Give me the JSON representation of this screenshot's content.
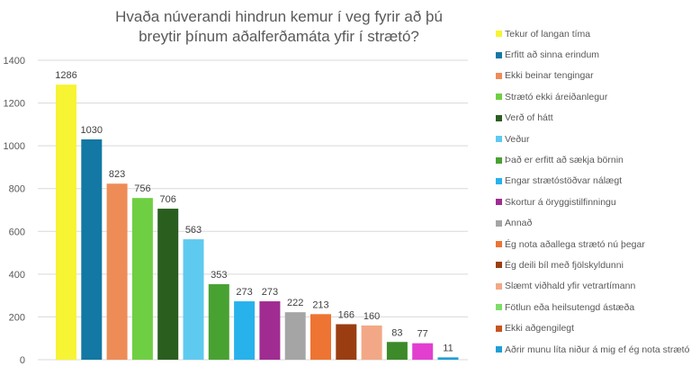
{
  "chart_data": {
    "type": "bar",
    "title": "Hvaða núverandi hindrun kemur í veg fyrir að þú breytir þínum aðalferðamáta yfir í strætó?",
    "title_lines": [
      "Hvaða núverandi hindrun kemur í veg fyrir að þú",
      "breytir þínum aðalferðamáta yfir í strætó?"
    ],
    "categories": [
      "Tekur of langan tíma",
      "Erfitt að sinna erindum",
      "Ekki beinar tengingar",
      "Strætó ekki áreiðanlegur",
      "Verð of hátt",
      "Veður",
      "Það er erfitt að sækja börnin",
      "Engar strætóstöðvar nálægt",
      "Skortur á öryggistilfinningu",
      "Annað",
      "Ég nota aðallega strætó nú þegar",
      "Ég deili bíl með fjölskyldunni",
      "Slæmt viðhald yfir vetrartímann",
      "Fötlun eða heilsutengd ástæða",
      "Ekki aðgengilegt",
      "Aðrir munu líta niður á mig ef ég nota strætó"
    ],
    "values": [
      1286,
      1030,
      823,
      756,
      706,
      563,
      353,
      273,
      273,
      222,
      213,
      166,
      160,
      83,
      77,
      11
    ],
    "bar_colors": [
      "#f7f433",
      "#1378a4",
      "#ee8c58",
      "#6fcf43",
      "#2a5e1f",
      "#5fcaf0",
      "#48a232",
      "#27b2ec",
      "#a02c92",
      "#a5a5a5",
      "#ee7433",
      "#9a3e12",
      "#f2a886",
      "#3c8a2a",
      "#e23fd0",
      "#1e9fd6"
    ],
    "legend_colors": [
      "#f7f433",
      "#1378a4",
      "#ee8c58",
      "#6fcf43",
      "#2a5e1f",
      "#5fcaf0",
      "#48a232",
      "#27b2ec",
      "#a02c92",
      "#a5a5a5",
      "#ee7433",
      "#9a3e12",
      "#f2a886",
      "#7fdc6a",
      "#c8541e",
      "#1e9fd6"
    ],
    "ylim": [
      0,
      1400
    ],
    "yticks": [
      0,
      200,
      400,
      600,
      800,
      1000,
      1200,
      1400
    ],
    "grid": true,
    "legend_position": "right",
    "xlabel": "",
    "ylabel": ""
  }
}
